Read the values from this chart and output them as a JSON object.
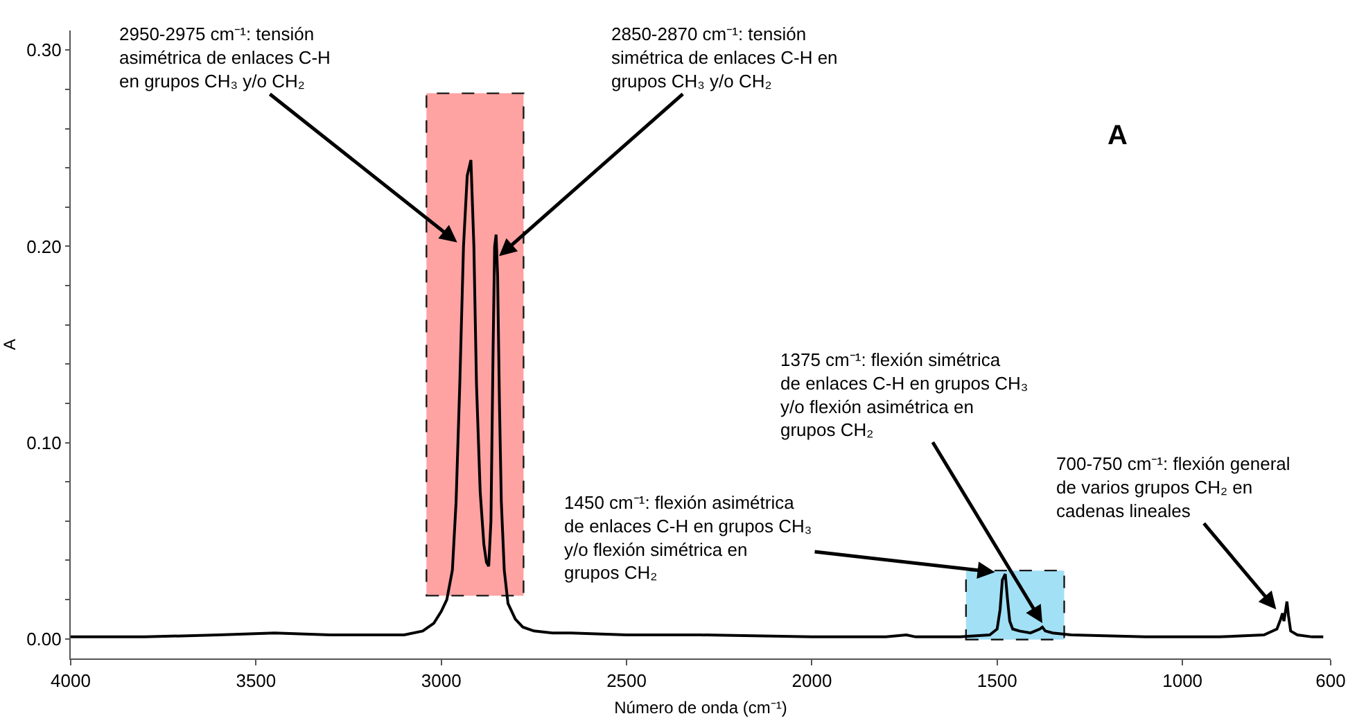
{
  "chart_data": {
    "type": "line",
    "xlabel": "Número de onda (cm⁻¹)",
    "ylabel": "A",
    "xlim": [
      4000,
      600
    ],
    "xticks": [
      4000,
      3500,
      3000,
      2500,
      2000,
      1500,
      1000,
      600
    ],
    "ylim": [
      -0.01,
      0.31
    ],
    "yticks": [
      {
        "value": 0,
        "label": "0.00"
      },
      {
        "value": 0.02,
        "label": null
      },
      {
        "value": 0.04,
        "label": null
      },
      {
        "value": 0.06,
        "label": null
      },
      {
        "value": 0.08,
        "label": null
      },
      {
        "value": 0.1,
        "label": "0.10"
      },
      {
        "value": 0.12,
        "label": null
      },
      {
        "value": 0.14,
        "label": null
      },
      {
        "value": 0.16,
        "label": null
      },
      {
        "value": 0.18,
        "label": null
      },
      {
        "value": 0.2,
        "label": "0.20"
      },
      {
        "value": 0.22,
        "label": null
      },
      {
        "value": 0.24,
        "label": null
      },
      {
        "value": 0.26,
        "label": null
      },
      {
        "value": 0.28,
        "label": null
      },
      {
        "value": 0.3,
        "label": "0.30"
      }
    ],
    "marker": "none",
    "line_style": "solid",
    "series": [
      {
        "color": "#000000",
        "x": [
          4000,
          3800,
          3600,
          3450,
          3300,
          3100,
          3050,
          3020,
          3000,
          2985,
          2970,
          2960,
          2950,
          2940,
          2930,
          2920,
          2912,
          2905,
          2895,
          2885,
          2878,
          2872,
          2866,
          2860,
          2856,
          2852,
          2848,
          2843,
          2838,
          2830,
          2820,
          2800,
          2780,
          2750,
          2700,
          2650,
          2500,
          2300,
          2000,
          1800,
          1745,
          1720,
          1600,
          1520,
          1500,
          1492,
          1486,
          1478,
          1472,
          1466,
          1458,
          1440,
          1410,
          1385,
          1378,
          1370,
          1350,
          1300,
          1100,
          900,
          780,
          745,
          735,
          730,
          726,
          722,
          718,
          714,
          708,
          690,
          650,
          620
        ],
        "values": [
          0.001,
          0.001,
          0.002,
          0.003,
          0.002,
          0.002,
          0.004,
          0.008,
          0.014,
          0.02,
          0.035,
          0.07,
          0.13,
          0.2,
          0.236,
          0.244,
          0.2,
          0.13,
          0.075,
          0.048,
          0.039,
          0.037,
          0.06,
          0.15,
          0.2,
          0.206,
          0.185,
          0.12,
          0.07,
          0.035,
          0.018,
          0.01,
          0.006,
          0.004,
          0.003,
          0.003,
          0.002,
          0.002,
          0.001,
          0.001,
          0.002,
          0.001,
          0.001,
          0.002,
          0.005,
          0.015,
          0.03,
          0.033,
          0.02,
          0.009,
          0.005,
          0.004,
          0.003,
          0.005,
          0.006,
          0.004,
          0.003,
          0.002,
          0.001,
          0.001,
          0.002,
          0.005,
          0.01,
          0.013,
          0.009,
          0.014,
          0.019,
          0.012,
          0.004,
          0.002,
          0.001,
          0.001
        ]
      }
    ],
    "bands": [
      {
        "axis": "x",
        "from": 3040,
        "to": 2778,
        "color": "#ff9999"
      },
      {
        "axis": "x",
        "from": 1584,
        "to": 1319,
        "color": "#99ddf5"
      }
    ],
    "annotations": [
      {
        "text": "2950-2975 cm⁻¹: tensión asimétrica de enlaces C-H en grupos CH₃ y/o CH₂",
        "x": 2957,
        "y": 0.202
      },
      {
        "text": "2850-2870 cm⁻¹: tensión simétrica de enlaces C-H en grupos CH₃ y/o CH₂",
        "x": 2844,
        "y": 0.195
      },
      {
        "text": "1450 cm⁻¹: flexión asimétrica de enlaces C-H en grupos CH₃ y/o flexión simétrica en grupos CH₂",
        "x": 1506,
        "y": 0.034
      },
      {
        "text": "1375 cm⁻¹: flexión simétrica de enlaces C-H en grupos CH₃ y/o flexión asimétrica en grupos CH₂",
        "x": 1378,
        "y": 0.008
      },
      {
        "text": "700-750 cm⁻¹: flexión general de varios grupos CH₂ en cadenas lineales",
        "x": 747,
        "y": 0.015
      },
      "A"
    ]
  }
}
